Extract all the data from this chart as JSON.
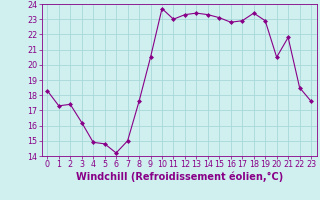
{
  "x": [
    0,
    1,
    2,
    3,
    4,
    5,
    6,
    7,
    8,
    9,
    10,
    11,
    12,
    13,
    14,
    15,
    16,
    17,
    18,
    19,
    20,
    21,
    22,
    23
  ],
  "y": [
    18.3,
    17.3,
    17.4,
    16.2,
    14.9,
    14.8,
    14.2,
    15.0,
    17.6,
    20.5,
    23.7,
    23.0,
    23.3,
    23.4,
    23.3,
    23.1,
    22.8,
    22.9,
    23.4,
    22.9,
    20.5,
    21.8,
    18.5,
    17.6
  ],
  "line_color": "#880088",
  "marker": "D",
  "marker_size": 2,
  "bg_color": "#d0f0f0",
  "grid_color": "#a8d8d8",
  "xlabel": "Windchill (Refroidissement éolien,°C)",
  "ylim": [
    14,
    24
  ],
  "xlim": [
    -0.5,
    23.5
  ],
  "yticks": [
    14,
    15,
    16,
    17,
    18,
    19,
    20,
    21,
    22,
    23,
    24
  ],
  "xticks": [
    0,
    1,
    2,
    3,
    4,
    5,
    6,
    7,
    8,
    9,
    10,
    11,
    12,
    13,
    14,
    15,
    16,
    17,
    18,
    19,
    20,
    21,
    22,
    23
  ],
  "tick_fontsize": 5.8,
  "label_fontsize": 7.0
}
